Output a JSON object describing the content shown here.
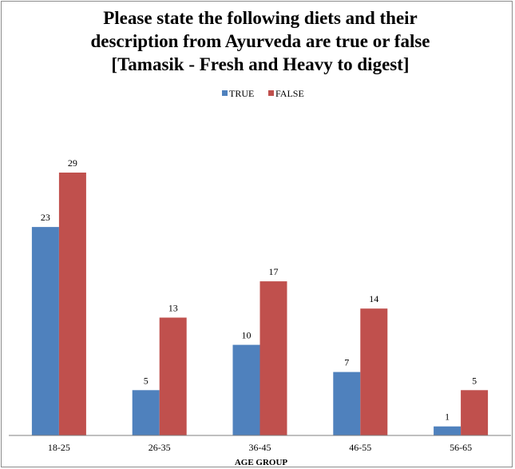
{
  "chart_data": {
    "type": "bar",
    "title_lines": [
      "Please state the following diets and their",
      "description from Ayurveda are true or false",
      "[Tamasik - Fresh and Heavy to digest]"
    ],
    "xlabel": "AGE GROUP",
    "ylabel": "",
    "categories": [
      "18-25",
      "26-35",
      "36-45",
      "46-55",
      "56-65"
    ],
    "series": [
      {
        "name": "TRUE",
        "color": "#4f81bd",
        "values": [
          23,
          5,
          10,
          7,
          1
        ]
      },
      {
        "name": "FALSE",
        "color": "#c0504d",
        "values": [
          29,
          13,
          17,
          14,
          5
        ]
      }
    ],
    "ylim": [
      0,
      35
    ],
    "grid": false,
    "legend_position": "top-center",
    "data_labels": true
  }
}
